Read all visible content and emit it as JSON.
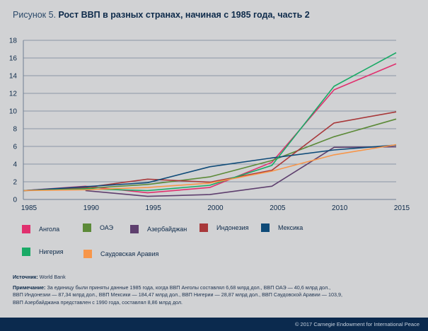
{
  "title": {
    "prefix": "Рисунок 5.",
    "main": "Рост ВВП в разных странах, начиная с 1985 года, часть 2"
  },
  "chart_data": {
    "type": "line",
    "title": "Рост ВВП в разных странах, начиная с 1985 года, часть 2",
    "xlabel": "",
    "ylabel": "",
    "x": [
      1985,
      1990,
      1995,
      2000,
      2005,
      2010,
      2015
    ],
    "x_ticks": [
      "1985",
      "1990",
      "1995",
      "2000",
      "2005",
      "2010",
      "2015"
    ],
    "y_ticks": [
      "0",
      "2",
      "4",
      "6",
      "8",
      "10",
      "12",
      "14",
      "16",
      "18"
    ],
    "ylim": [
      0,
      18
    ],
    "grid": true,
    "legend_position": "bottom",
    "series": [
      {
        "name": "Ангола",
        "color": "#e0306e",
        "values": [
          1,
          1.5,
          0.75,
          1.35,
          4.2,
          12.4,
          15.35
        ]
      },
      {
        "name": "ОАЭ",
        "color": "#5c8a38",
        "values": [
          1,
          1.25,
          1.7,
          2.55,
          4.4,
          7.1,
          9.1
        ]
      },
      {
        "name": "Азербайджан",
        "color": "#5e3f6e",
        "values": [
          null,
          1.0,
          0.35,
          0.55,
          1.5,
          5.9,
          5.95
        ]
      },
      {
        "name": "Индонезия",
        "color": "#a8383a",
        "values": [
          1,
          1.35,
          2.3,
          1.95,
          3.3,
          8.65,
          9.9
        ]
      },
      {
        "name": "Мексика",
        "color": "#0e4a78",
        "values": [
          1,
          1.45,
          1.9,
          3.7,
          4.7,
          5.6,
          6.15
        ]
      },
      {
        "name": "Нигерия",
        "color": "#1aaa66",
        "values": [
          1,
          1.2,
          1.0,
          1.6,
          3.85,
          12.8,
          16.6
        ]
      },
      {
        "name": "Саудовская Аравия",
        "color": "#f7964a",
        "values": [
          1,
          1.1,
          1.35,
          1.85,
          3.2,
          5.05,
          6.2
        ]
      }
    ]
  },
  "notes": {
    "source_label": "Источник:",
    "source_text": "World Bank",
    "note_label": "Примечание:",
    "note_line1": "За единицу были приняты данные 1985 года, когда ВВП Анголы составлял 6,68 млрд дол., ВВП ОАЭ — 40,6 млрд дол.,",
    "note_line2": "ВВП Индонезии — 87,34 млрд дол., ВВП Мексики — 184,47 млрд дол., ВВП Нигерии — 28,87 млрд дол., ВВП Саудовской Аравии — 103,9,",
    "note_line3": "ВВП Азербайджана представлен с 1990 года, составлял 8,86 млрд дол."
  },
  "footer": {
    "copyright": "© 2017 Carnegie Endowment for International Peace"
  }
}
